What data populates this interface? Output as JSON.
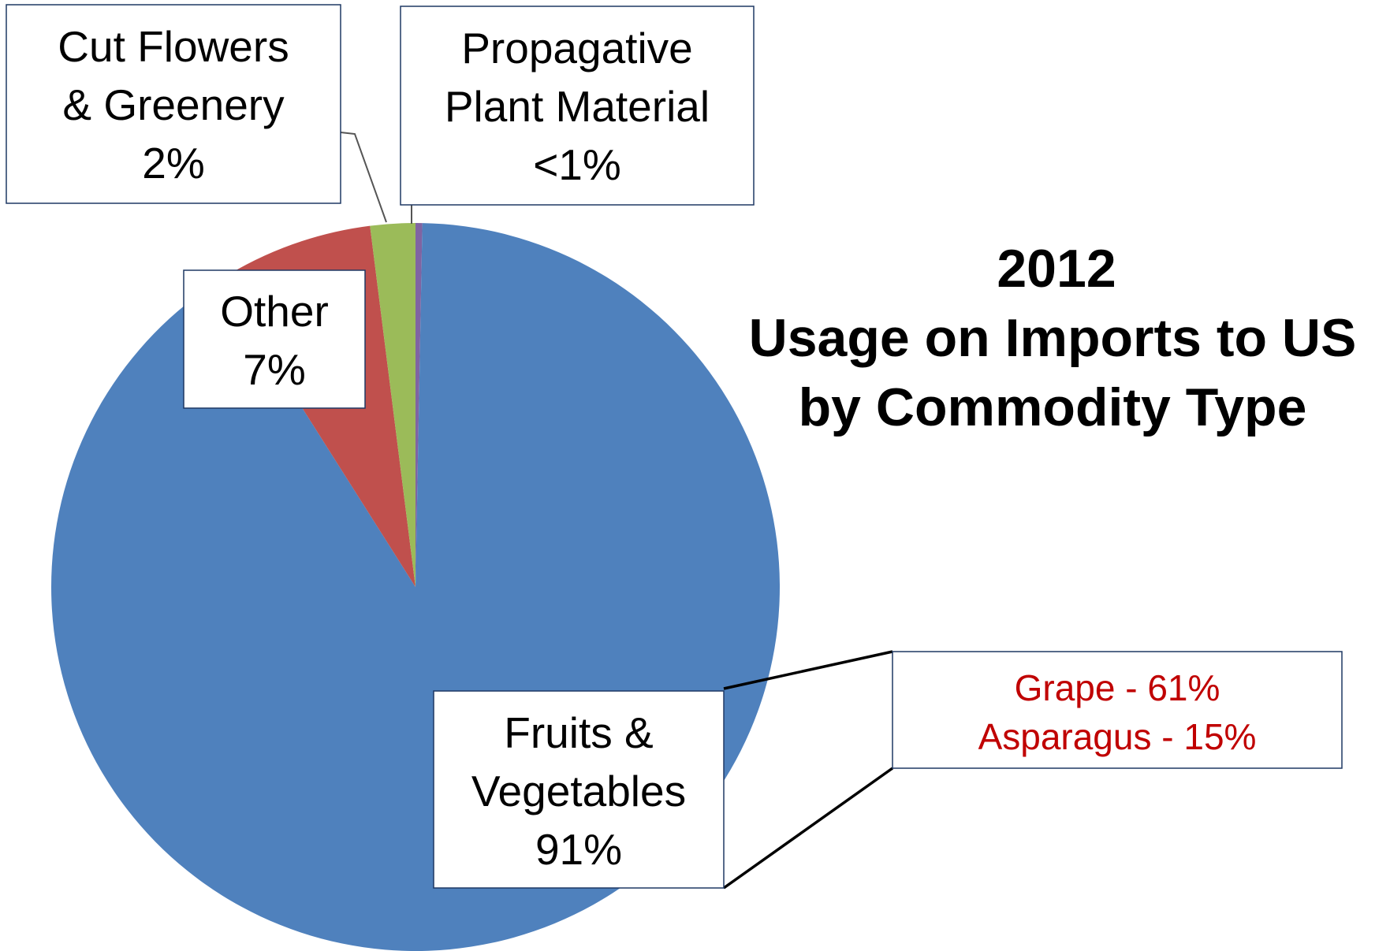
{
  "chart_data": {
    "type": "pie",
    "title": "2012",
    "subtitle_lines": [
      "Usage on Imports to US",
      "by Commodity Type"
    ],
    "slices": [
      {
        "name_lines": [
          "Propagative",
          "Plant Material"
        ],
        "value_text": "<1%",
        "value": 0.3,
        "color": "#8064a2"
      },
      {
        "name_lines": [
          "Fruits &",
          "Vegetables"
        ],
        "value_text": "91%",
        "value": 91,
        "color": "#4f81bd"
      },
      {
        "name_lines": [
          "Other"
        ],
        "value_text": "7%",
        "value": 7,
        "color": "#c0504d"
      },
      {
        "name_lines": [
          "Cut Flowers",
          "& Greenery"
        ],
        "value_text": "2%",
        "value": 2,
        "color": "#9bbb59"
      }
    ],
    "breakdown": {
      "of": "Fruits & Vegetables",
      "items": [
        {
          "label": "Grape - 61%"
        },
        {
          "label": "Asparagus - 15%"
        }
      ]
    }
  }
}
